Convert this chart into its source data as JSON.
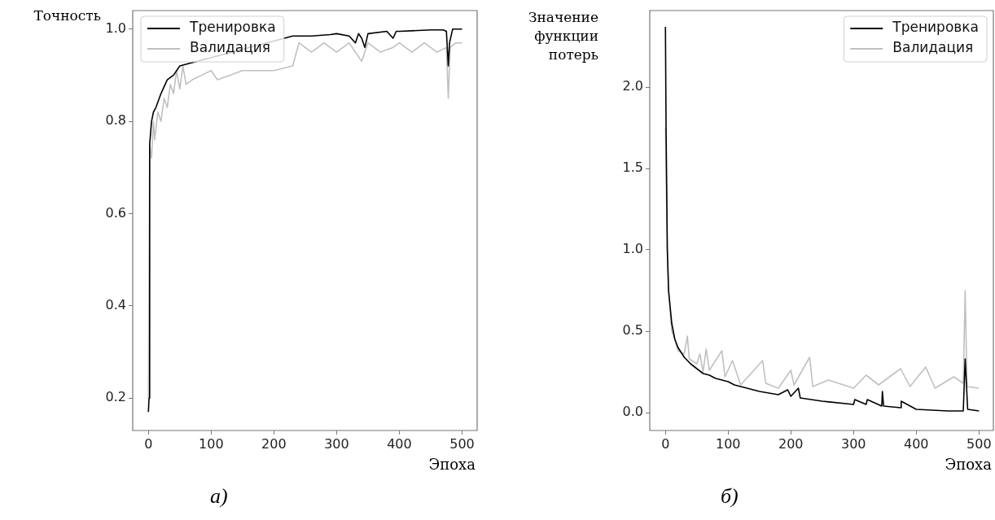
{
  "chart_data": [
    {
      "type": "line",
      "ylabel": "Точность",
      "xlabel": "Эпоха",
      "annotations": [
        "а)"
      ],
      "xlim": [
        -25,
        524
      ],
      "xticks": [
        0,
        100,
        200,
        300,
        400,
        500
      ],
      "ylim": [
        0.13,
        1.04
      ],
      "yticks": [
        {
          "value": 0.2,
          "label": "0.2"
        },
        {
          "value": 0.4,
          "label": "0.4"
        },
        {
          "value": 0.6,
          "label": "0.6"
        },
        {
          "value": 0.8,
          "label": "0.8"
        },
        {
          "value": 1.0,
          "label": "1.0"
        }
      ],
      "grid": false,
      "legend": "top left",
      "marker": "none",
      "line_style": "solid",
      "series": [
        {
          "name": "Тренировка",
          "color": "#000000",
          "x": [
            0,
            1,
            2,
            5,
            8,
            12,
            20,
            30,
            40,
            50,
            230,
            260,
            290,
            300,
            320,
            330,
            335,
            340,
            345,
            350,
            380,
            390,
            395,
            400,
            450,
            470,
            475,
            478,
            480,
            485,
            500
          ],
          "values": [
            0.17,
            0.2,
            0.75,
            0.8,
            0.82,
            0.83,
            0.86,
            0.89,
            0.9,
            0.92,
            0.985,
            0.985,
            0.988,
            0.99,
            0.985,
            0.97,
            0.99,
            0.98,
            0.96,
            0.99,
            0.995,
            0.98,
            0.995,
            0.995,
            0.998,
            0.998,
            0.995,
            0.92,
            0.97,
            1.0,
            1.0
          ]
        },
        {
          "name": "Валидация",
          "color": "#c0c0c0",
          "x": [
            0,
            2,
            5,
            8,
            10,
            15,
            20,
            25,
            30,
            35,
            40,
            45,
            50,
            55,
            60,
            70,
            85,
            100,
            110,
            130,
            150,
            180,
            200,
            230,
            240,
            260,
            280,
            300,
            320,
            340,
            350,
            370,
            390,
            400,
            420,
            440,
            460,
            475,
            478,
            481,
            490,
            500
          ],
          "values": [
            0.2,
            0.75,
            0.72,
            0.8,
            0.76,
            0.82,
            0.8,
            0.85,
            0.83,
            0.88,
            0.86,
            0.91,
            0.87,
            0.92,
            0.88,
            0.89,
            0.9,
            0.91,
            0.89,
            0.9,
            0.91,
            0.91,
            0.91,
            0.92,
            0.97,
            0.95,
            0.97,
            0.95,
            0.97,
            0.93,
            0.97,
            0.95,
            0.96,
            0.97,
            0.95,
            0.97,
            0.95,
            0.96,
            0.85,
            0.96,
            0.97,
            0.97
          ]
        }
      ]
    },
    {
      "type": "line",
      "ylabel": "Значение функции потерь",
      "xlabel": "Эпоха",
      "annotations": [
        "б)"
      ],
      "xlim": [
        -25,
        523
      ],
      "xticks": [
        0,
        100,
        200,
        300,
        400,
        500
      ],
      "ylim": [
        -0.11,
        2.47
      ],
      "yticks": [
        {
          "value": 0,
          "label": "0.0"
        },
        {
          "value": 0.5,
          "label": "0.5"
        },
        {
          "value": 1.0,
          "label": "1.0"
        },
        {
          "value": 1.5,
          "label": "1.5"
        },
        {
          "value": 2.0,
          "label": "2.0"
        }
      ],
      "grid": false,
      "legend": "top right",
      "marker": "none",
      "line_style": "solid",
      "series": [
        {
          "name": "Тренировка",
          "color": "#000000",
          "x": [
            0,
            1,
            3,
            5,
            10,
            15,
            20,
            30,
            40,
            50,
            60,
            70,
            80,
            100,
            110,
            120,
            150,
            180,
            195,
            200,
            212,
            215,
            250,
            300,
            302,
            320,
            322,
            345,
            346,
            348,
            375,
            376,
            400,
            450,
            475,
            478,
            482,
            500
          ],
          "values": [
            2.37,
            1.75,
            1.0,
            0.75,
            0.55,
            0.45,
            0.4,
            0.34,
            0.3,
            0.27,
            0.24,
            0.23,
            0.21,
            0.19,
            0.17,
            0.16,
            0.13,
            0.11,
            0.14,
            0.1,
            0.15,
            0.09,
            0.07,
            0.05,
            0.08,
            0.05,
            0.08,
            0.04,
            0.13,
            0.04,
            0.03,
            0.07,
            0.02,
            0.01,
            0.01,
            0.33,
            0.02,
            0.01
          ]
        },
        {
          "name": "Валидация",
          "color": "#c0c0c0",
          "x": [
            0,
            3,
            5,
            10,
            15,
            20,
            30,
            35,
            38,
            50,
            55,
            60,
            65,
            70,
            90,
            95,
            107,
            120,
            155,
            160,
            180,
            200,
            205,
            230,
            235,
            260,
            300,
            320,
            340,
            375,
            390,
            415,
            430,
            460,
            475,
            478,
            481,
            500
          ],
          "values": [
            1.75,
            1.0,
            0.75,
            0.5,
            0.45,
            0.38,
            0.36,
            0.47,
            0.33,
            0.3,
            0.36,
            0.25,
            0.39,
            0.26,
            0.38,
            0.22,
            0.32,
            0.17,
            0.32,
            0.18,
            0.15,
            0.26,
            0.17,
            0.34,
            0.16,
            0.2,
            0.15,
            0.23,
            0.17,
            0.27,
            0.16,
            0.28,
            0.15,
            0.22,
            0.18,
            0.75,
            0.16,
            0.15
          ]
        }
      ]
    }
  ]
}
